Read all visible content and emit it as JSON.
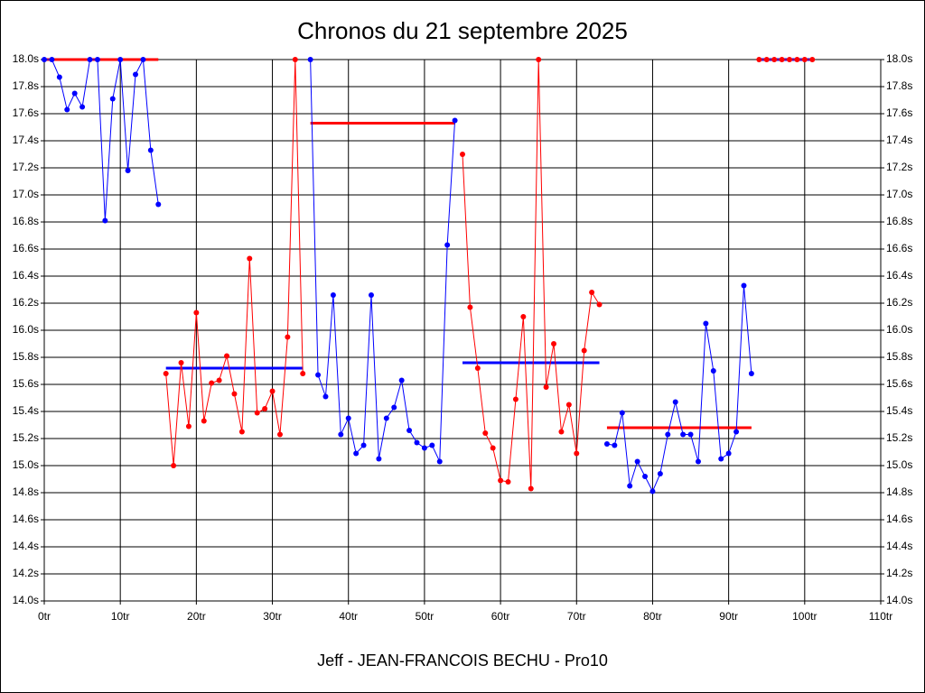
{
  "chart_data": {
    "type": "line",
    "title": "Chronos du 21 septembre 2025",
    "xlabel": "Jeff - JEAN-FRANCOIS BECHU - Pro10",
    "xlim": [
      0,
      110
    ],
    "xticks": [
      {
        "value": 0,
        "label": "0tr"
      },
      {
        "value": 10,
        "label": "10tr"
      },
      {
        "value": 20,
        "label": "20tr"
      },
      {
        "value": 30,
        "label": "30tr"
      },
      {
        "value": 40,
        "label": "40tr"
      },
      {
        "value": 50,
        "label": "50tr"
      },
      {
        "value": 60,
        "label": "60tr"
      },
      {
        "value": 70,
        "label": "70tr"
      },
      {
        "value": 80,
        "label": "80tr"
      },
      {
        "value": 90,
        "label": "90tr"
      },
      {
        "value": 100,
        "label": "100tr"
      },
      {
        "value": 110,
        "label": "110tr"
      }
    ],
    "ylim": [
      14.0,
      18.0
    ],
    "yticks": [
      {
        "value": 14.0,
        "label": "14.0s"
      },
      {
        "value": 14.2,
        "label": "14.2s"
      },
      {
        "value": 14.4,
        "label": "14.4s"
      },
      {
        "value": 14.6,
        "label": "14.6s"
      },
      {
        "value": 14.8,
        "label": "14.8s"
      },
      {
        "value": 15.0,
        "label": "15.0s"
      },
      {
        "value": 15.2,
        "label": "15.2s"
      },
      {
        "value": 15.4,
        "label": "15.4s"
      },
      {
        "value": 15.6,
        "label": "15.6s"
      },
      {
        "value": 15.8,
        "label": "15.8s"
      },
      {
        "value": 16.0,
        "label": "16.0s"
      },
      {
        "value": 16.2,
        "label": "16.2s"
      },
      {
        "value": 16.4,
        "label": "16.4s"
      },
      {
        "value": 16.6,
        "label": "16.6s"
      },
      {
        "value": 16.8,
        "label": "16.8s"
      },
      {
        "value": 17.0,
        "label": "17.0s"
      },
      {
        "value": 17.2,
        "label": "17.2s"
      },
      {
        "value": 17.4,
        "label": "17.4s"
      },
      {
        "value": 17.6,
        "label": "17.6s"
      },
      {
        "value": 17.8,
        "label": "17.8s"
      },
      {
        "value": 18.0,
        "label": "18.0s"
      }
    ],
    "grid": true,
    "series": [
      {
        "color": "#0000ff",
        "x": [
          0,
          1,
          2,
          3,
          4,
          5,
          6,
          7,
          8,
          9,
          10,
          11,
          12,
          13,
          14,
          15
        ],
        "values": [
          18.0,
          18.0,
          17.87,
          17.63,
          17.75,
          17.65,
          18.0,
          18.0,
          16.81,
          17.71,
          18.0,
          17.18,
          17.89,
          18.0,
          17.33,
          16.93
        ]
      },
      {
        "color": "#ff0000",
        "x": [
          16,
          17,
          18,
          19,
          20,
          21,
          22,
          23,
          24,
          25,
          26,
          27,
          28,
          29,
          30,
          31,
          32,
          33,
          34
        ],
        "values": [
          15.68,
          15.0,
          15.76,
          15.29,
          16.13,
          15.33,
          15.61,
          15.63,
          15.81,
          15.53,
          15.25,
          16.53,
          15.39,
          15.42,
          15.55,
          15.23,
          15.95,
          18.0,
          15.68
        ]
      },
      {
        "color": "#0000ff",
        "x": [
          35,
          36,
          37,
          38,
          39,
          40,
          41,
          42,
          43,
          44,
          45,
          46,
          47,
          48,
          49,
          50,
          51,
          52,
          53,
          54
        ],
        "values": [
          18.0,
          15.67,
          15.51,
          16.26,
          15.23,
          15.35,
          15.09,
          15.15,
          16.26,
          15.05,
          15.35,
          15.43,
          15.63,
          15.26,
          15.17,
          15.13,
          15.15,
          15.03,
          16.63,
          17.55
        ]
      },
      {
        "color": "#ff0000",
        "x": [
          55,
          56,
          57,
          58,
          59,
          60,
          61,
          62,
          63,
          64,
          65,
          66,
          67,
          68,
          69,
          70,
          71,
          72,
          73
        ],
        "values": [
          17.3,
          16.17,
          15.72,
          15.24,
          15.13,
          14.89,
          14.88,
          15.49,
          16.1,
          14.83,
          18.0,
          15.58,
          15.9,
          15.25,
          15.45,
          15.09,
          15.85,
          16.28,
          16.19
        ]
      },
      {
        "color": "#0000ff",
        "x": [
          74,
          75,
          76,
          77,
          78,
          79,
          80,
          81,
          82,
          83,
          84,
          85,
          86,
          87,
          88,
          89,
          90,
          91,
          92,
          93
        ],
        "values": [
          15.16,
          15.15,
          15.39,
          14.85,
          15.03,
          14.92,
          14.81,
          14.94,
          15.23,
          15.47,
          15.23,
          15.23,
          15.03,
          16.05,
          15.7,
          15.05,
          15.09,
          15.25,
          16.33,
          15.68
        ]
      },
      {
        "color": "#ff0000",
        "x": [
          94,
          95,
          96,
          97,
          98,
          99,
          100,
          101
        ],
        "values": [
          18.0,
          18.0,
          18.0,
          18.0,
          18.0,
          18.0,
          18.0,
          18.0
        ]
      }
    ],
    "averages": [
      {
        "color": "#ff0000",
        "x": [
          0,
          15
        ],
        "value": 18.0
      },
      {
        "color": "#0000ff",
        "x": [
          16,
          34
        ],
        "value": 15.72
      },
      {
        "color": "#ff0000",
        "x": [
          35,
          54
        ],
        "value": 17.53
      },
      {
        "color": "#0000ff",
        "x": [
          55,
          73
        ],
        "value": 15.76
      },
      {
        "color": "#ff0000",
        "x": [
          74,
          93
        ],
        "value": 15.28
      },
      {
        "color": "#0000ff",
        "x": [
          94,
          101
        ],
        "value": 18.0
      }
    ]
  }
}
